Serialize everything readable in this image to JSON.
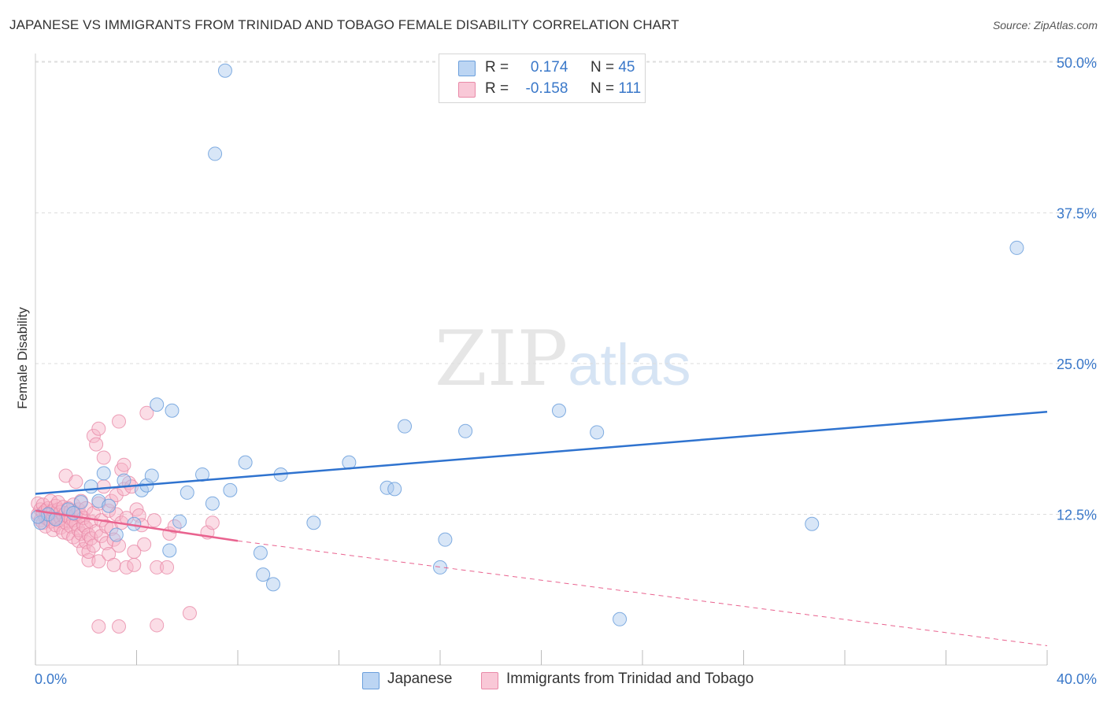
{
  "header": {
    "title": "JAPANESE VS IMMIGRANTS FROM TRINIDAD AND TOBAGO FEMALE DISABILITY CORRELATION CHART",
    "source": "Source: ZipAtlas.com"
  },
  "watermark": {
    "zip": "ZIP",
    "atlas": "atlas"
  },
  "legend": {
    "rows": [
      {
        "r_label": "R =",
        "r_value": "0.174",
        "n_label": "N =",
        "n_value": "45"
      },
      {
        "r_label": "R =",
        "r_value": "-0.158",
        "n_label": "N =",
        "n_value": "111"
      }
    ]
  },
  "bottom_legend": {
    "items": [
      {
        "label": "Japanese"
      },
      {
        "label": "Immigrants from Trinidad and Tobago"
      }
    ]
  },
  "colors": {
    "blue_fill": "#a9c8ee",
    "blue_stroke": "#6b9fdc",
    "blue_line": "#2f73cf",
    "pink_fill": "#f6b4c8",
    "pink_stroke": "#e98aa8",
    "pink_line": "#e9638f",
    "grid": "#dddddd",
    "tick_label": "#3a78c9"
  },
  "chart_data": {
    "type": "scatter",
    "title": "JAPANESE VS IMMIGRANTS FROM TRINIDAD AND TOBAGO FEMALE DISABILITY CORRELATION CHART",
    "xlabel": "",
    "ylabel": "Female Disability",
    "xlim": [
      0,
      40
    ],
    "ylim": [
      0,
      50
    ],
    "x_tick_labels": [
      "0.0%",
      "40.0%"
    ],
    "y_ticks": [
      12.5,
      25.0,
      37.5,
      50.0
    ],
    "y_tick_labels": [
      "12.5%",
      "25.0%",
      "37.5%",
      "50.0%"
    ],
    "grid": true,
    "legend_position": "top-center",
    "series": [
      {
        "name": "Japanese",
        "r": 0.174,
        "n": 45,
        "trend": {
          "x": [
            0,
            40
          ],
          "y": [
            14.2,
            21.0
          ],
          "style": "solid"
        },
        "points": [
          [
            0.2,
            11.8
          ],
          [
            0.5,
            12.5
          ],
          [
            1.3,
            12.9
          ],
          [
            1.8,
            13.5
          ],
          [
            2.2,
            14.8
          ],
          [
            2.5,
            13.6
          ],
          [
            2.7,
            15.9
          ],
          [
            2.9,
            13.2
          ],
          [
            3.2,
            10.8
          ],
          [
            3.5,
            15.3
          ],
          [
            3.9,
            11.7
          ],
          [
            4.2,
            14.5
          ],
          [
            4.4,
            14.9
          ],
          [
            4.6,
            15.7
          ],
          [
            4.8,
            21.6
          ],
          [
            5.3,
            9.5
          ],
          [
            5.4,
            21.1
          ],
          [
            5.7,
            11.9
          ],
          [
            6.0,
            14.3
          ],
          [
            6.6,
            15.8
          ],
          [
            7.0,
            13.4
          ],
          [
            7.1,
            42.4
          ],
          [
            7.5,
            49.3
          ],
          [
            7.7,
            14.5
          ],
          [
            8.3,
            16.8
          ],
          [
            8.9,
            9.3
          ],
          [
            9.0,
            7.5
          ],
          [
            9.4,
            6.7
          ],
          [
            9.7,
            15.8
          ],
          [
            11.0,
            11.8
          ],
          [
            12.4,
            16.8
          ],
          [
            13.9,
            14.7
          ],
          [
            14.2,
            14.6
          ],
          [
            14.6,
            19.8
          ],
          [
            16.0,
            8.1
          ],
          [
            16.2,
            10.4
          ],
          [
            17.0,
            19.4
          ],
          [
            20.7,
            21.1
          ],
          [
            22.2,
            19.3
          ],
          [
            23.1,
            3.8
          ],
          [
            30.7,
            11.7
          ],
          [
            38.8,
            34.6
          ],
          [
            0.1,
            12.3
          ],
          [
            0.8,
            12.1
          ],
          [
            1.5,
            12.6
          ]
        ]
      },
      {
        "name": "Immigrants from Trinidad and Tobago",
        "r": -0.158,
        "n": 111,
        "trend": {
          "x": [
            0,
            8
          ],
          "y": [
            12.8,
            10.3
          ],
          "dashed_to": [
            40,
            1.6
          ]
        },
        "points": [
          [
            0.1,
            12.5
          ],
          [
            0.1,
            13.4
          ],
          [
            0.2,
            12.0
          ],
          [
            0.2,
            12.9
          ],
          [
            0.3,
            11.8
          ],
          [
            0.3,
            12.6
          ],
          [
            0.3,
            13.3
          ],
          [
            0.4,
            12.2
          ],
          [
            0.4,
            12.8
          ],
          [
            0.4,
            11.5
          ],
          [
            0.5,
            12.4
          ],
          [
            0.5,
            13.0
          ],
          [
            0.5,
            12.1
          ],
          [
            0.6,
            11.9
          ],
          [
            0.6,
            12.7
          ],
          [
            0.6,
            13.6
          ],
          [
            0.7,
            12.3
          ],
          [
            0.7,
            11.2
          ],
          [
            0.7,
            12.8
          ],
          [
            0.8,
            12.5
          ],
          [
            0.8,
            13.2
          ],
          [
            0.8,
            11.6
          ],
          [
            0.9,
            12.0
          ],
          [
            0.9,
            12.9
          ],
          [
            0.9,
            13.5
          ],
          [
            1.0,
            12.2
          ],
          [
            1.0,
            11.4
          ],
          [
            1.0,
            12.7
          ],
          [
            1.1,
            12.4
          ],
          [
            1.1,
            13.1
          ],
          [
            1.1,
            11.0
          ],
          [
            1.2,
            12.6
          ],
          [
            1.2,
            11.8
          ],
          [
            1.2,
            15.7
          ],
          [
            1.3,
            12.3
          ],
          [
            1.3,
            13.0
          ],
          [
            1.3,
            10.9
          ],
          [
            1.4,
            12.1
          ],
          [
            1.4,
            12.8
          ],
          [
            1.4,
            11.5
          ],
          [
            1.5,
            13.3
          ],
          [
            1.5,
            12.0
          ],
          [
            1.5,
            10.6
          ],
          [
            1.6,
            11.7
          ],
          [
            1.6,
            12.5
          ],
          [
            1.6,
            15.2
          ],
          [
            1.7,
            10.3
          ],
          [
            1.7,
            12.9
          ],
          [
            1.7,
            11.2
          ],
          [
            1.8,
            12.4
          ],
          [
            1.8,
            10.9
          ],
          [
            1.8,
            13.6
          ],
          [
            1.9,
            11.6
          ],
          [
            1.9,
            9.6
          ],
          [
            1.9,
            12.2
          ],
          [
            2.0,
            10.2
          ],
          [
            2.0,
            11.4
          ],
          [
            2.0,
            13.0
          ],
          [
            2.1,
            8.7
          ],
          [
            2.1,
            10.8
          ],
          [
            2.1,
            9.4
          ],
          [
            2.2,
            11.9
          ],
          [
            2.2,
            10.5
          ],
          [
            2.3,
            12.6
          ],
          [
            2.3,
            9.9
          ],
          [
            2.3,
            19.0
          ],
          [
            2.4,
            18.3
          ],
          [
            2.4,
            11.1
          ],
          [
            2.5,
            8.6
          ],
          [
            2.5,
            19.6
          ],
          [
            2.5,
            13.4
          ],
          [
            2.6,
            10.7
          ],
          [
            2.6,
            12.0
          ],
          [
            2.7,
            17.2
          ],
          [
            2.7,
            14.8
          ],
          [
            2.8,
            11.5
          ],
          [
            2.8,
            10.1
          ],
          [
            2.9,
            12.8
          ],
          [
            2.9,
            9.2
          ],
          [
            3.0,
            11.3
          ],
          [
            3.0,
            13.6
          ],
          [
            3.1,
            10.4
          ],
          [
            3.1,
            8.3
          ],
          [
            3.2,
            12.5
          ],
          [
            3.2,
            14.1
          ],
          [
            3.3,
            20.2
          ],
          [
            3.3,
            9.9
          ],
          [
            3.4,
            16.2
          ],
          [
            3.4,
            11.8
          ],
          [
            3.5,
            14.6
          ],
          [
            3.5,
            16.6
          ],
          [
            3.6,
            8.1
          ],
          [
            3.6,
            12.2
          ],
          [
            3.7,
            15.1
          ],
          [
            3.8,
            14.8
          ],
          [
            3.9,
            9.4
          ],
          [
            3.9,
            8.3
          ],
          [
            4.0,
            12.9
          ],
          [
            4.1,
            12.4
          ],
          [
            4.2,
            11.6
          ],
          [
            4.3,
            10.0
          ],
          [
            4.4,
            20.9
          ],
          [
            4.7,
            12.0
          ],
          [
            4.8,
            8.1
          ],
          [
            5.2,
            8.1
          ],
          [
            5.3,
            10.9
          ],
          [
            5.5,
            11.5
          ],
          [
            6.1,
            4.3
          ],
          [
            6.8,
            11.0
          ],
          [
            7.0,
            11.8
          ],
          [
            3.3,
            3.2
          ],
          [
            4.8,
            3.3
          ],
          [
            2.5,
            3.2
          ]
        ]
      }
    ]
  }
}
